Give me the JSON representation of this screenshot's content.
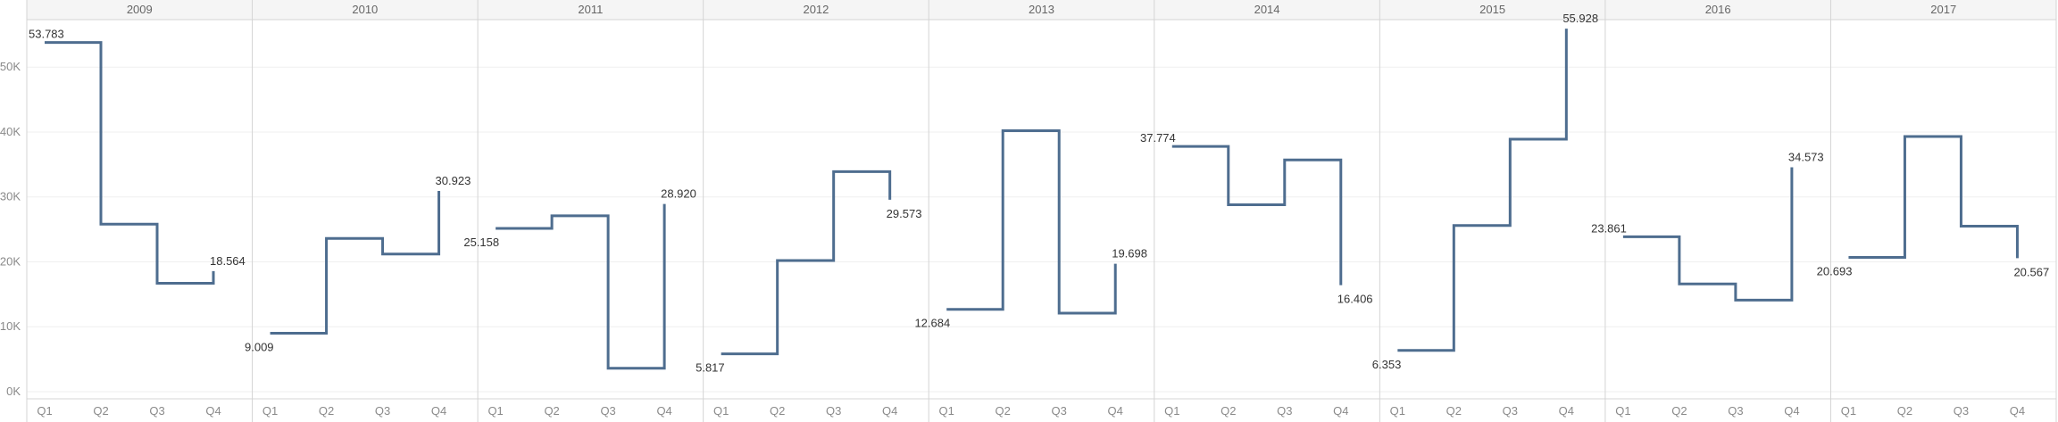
{
  "chart_data": {
    "type": "line",
    "line_shape": "step",
    "color": "#4e6d8f",
    "grid": true,
    "ylim": [
      0,
      58000
    ],
    "y_ticks": [
      {
        "value": 0,
        "label": "0K"
      },
      {
        "value": 10000,
        "label": "10K"
      },
      {
        "value": 20000,
        "label": "20K"
      },
      {
        "value": 30000,
        "label": "30K"
      },
      {
        "value": 40000,
        "label": "40K"
      },
      {
        "value": 50000,
        "label": "50K"
      }
    ],
    "x": [
      "Q1",
      "Q2",
      "Q3",
      "Q4"
    ],
    "panels": [
      {
        "year": "2009",
        "values": [
          53783,
          25800,
          16700,
          18564
        ],
        "labels": {
          "0": "53.783",
          "3": "18.564"
        }
      },
      {
        "year": "2010",
        "values": [
          9009,
          23600,
          21200,
          30923
        ],
        "labels": {
          "0": "9.009",
          "3": "30.923"
        }
      },
      {
        "year": "2011",
        "values": [
          25158,
          27100,
          3600,
          28920
        ],
        "labels": {
          "0": "25.158",
          "3": "28.920"
        }
      },
      {
        "year": "2012",
        "values": [
          5817,
          20200,
          33900,
          29573
        ],
        "labels": {
          "0": "5.817",
          "3": "29.573"
        }
      },
      {
        "year": "2013",
        "values": [
          12684,
          40200,
          12100,
          19698
        ],
        "labels": {
          "0": "12.684",
          "3": "19.698"
        }
      },
      {
        "year": "2014",
        "values": [
          37774,
          28800,
          35700,
          16406
        ],
        "labels": {
          "0": "37.774",
          "3": "16.406"
        }
      },
      {
        "year": "2015",
        "values": [
          6353,
          25600,
          38900,
          55928
        ],
        "labels": {
          "0": "6.353",
          "3": "55.928"
        }
      },
      {
        "year": "2016",
        "values": [
          23861,
          16600,
          14100,
          34573
        ],
        "labels": {
          "0": "23.861",
          "3": "34.573"
        }
      },
      {
        "year": "2017",
        "values": [
          20693,
          39300,
          25500,
          20567
        ],
        "labels": {
          "0": "20.693",
          "3": "20.567"
        }
      }
    ]
  }
}
